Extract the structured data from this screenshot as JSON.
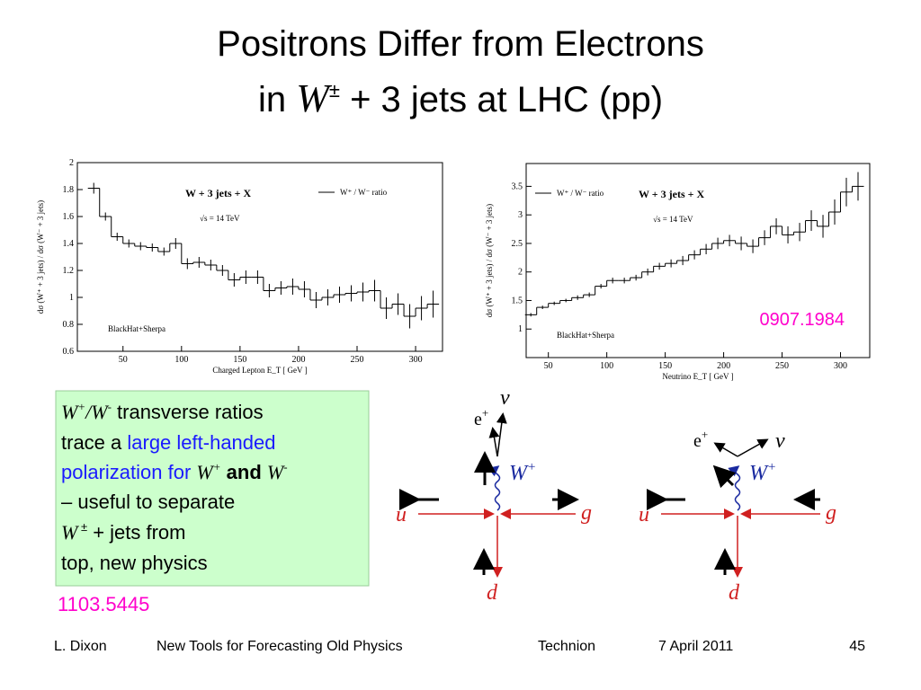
{
  "title": {
    "line1": "Positrons Differ from Electrons",
    "line2": [
      "in ",
      "W",
      "±",
      " + 3 jets at LHC (pp)"
    ]
  },
  "chart_data": [
    {
      "type": "histogram",
      "title": "W + 3 jets + X",
      "legend": "W⁺ / W⁻  ratio",
      "energy": "√s  = 14 TeV",
      "source": "BlackHat+Sherpa",
      "x_label": "Charged  Lepton  E_T  [ GeV ]",
      "y_label": "dσ (W⁺ + 3 jets)  /  dσ (W⁻ + 3 jets)",
      "color": "#000000",
      "bins": [
        20,
        30,
        40,
        50,
        60,
        70,
        80,
        90,
        100,
        110,
        120,
        130,
        140,
        150,
        160,
        170,
        180,
        190,
        200,
        210,
        220,
        230,
        240,
        250,
        260,
        270,
        280,
        290,
        300,
        310,
        320
      ],
      "values": [
        1.81,
        1.6,
        1.45,
        1.4,
        1.38,
        1.37,
        1.34,
        1.4,
        1.25,
        1.26,
        1.24,
        1.2,
        1.13,
        1.15,
        1.15,
        1.05,
        1.07,
        1.08,
        1.06,
        0.98,
        1.0,
        1.02,
        1.03,
        1.04,
        1.05,
        0.92,
        0.95,
        0.86,
        0.92,
        0.95
      ],
      "errors": [
        0.04,
        0.03,
        0.03,
        0.03,
        0.03,
        0.03,
        0.03,
        0.04,
        0.04,
        0.04,
        0.04,
        0.04,
        0.05,
        0.05,
        0.05,
        0.05,
        0.05,
        0.06,
        0.06,
        0.06,
        0.06,
        0.06,
        0.06,
        0.07,
        0.08,
        0.08,
        0.08,
        0.09,
        0.09,
        0.1
      ],
      "xlim": [
        11,
        323
      ],
      "ylim": [
        0.6,
        2
      ],
      "xticks": [
        50,
        100,
        150,
        200,
        250,
        300
      ],
      "yticks": [
        0.6,
        0.8,
        1,
        1.2,
        1.4,
        1.6,
        1.8,
        2
      ]
    },
    {
      "type": "histogram",
      "title": "W + 3 jets + X",
      "legend": "W⁺ / W⁻  ratio",
      "energy": "√s  = 14 TeV",
      "source": "BlackHat+Sherpa",
      "x_label": "Neutrino  E_T  [ GeV ]",
      "y_label": "dσ (W⁺ + 3 jets)  /  dσ (W⁻ + 3 jets)",
      "color": "#000000",
      "annotation": "0907.1984",
      "bins": [
        30,
        40,
        50,
        60,
        70,
        80,
        90,
        100,
        110,
        120,
        130,
        140,
        150,
        160,
        170,
        180,
        190,
        200,
        210,
        220,
        230,
        240,
        250,
        260,
        270,
        280,
        290,
        300,
        310,
        320
      ],
      "values": [
        1.25,
        1.38,
        1.45,
        1.5,
        1.55,
        1.6,
        1.75,
        1.85,
        1.85,
        1.9,
        2.0,
        2.1,
        2.15,
        2.2,
        2.3,
        2.4,
        2.5,
        2.55,
        2.5,
        2.45,
        2.6,
        2.8,
        2.65,
        2.7,
        2.9,
        2.8,
        3.05,
        3.4,
        3.5
      ],
      "errors": [
        0.03,
        0.03,
        0.03,
        0.03,
        0.04,
        0.04,
        0.04,
        0.05,
        0.05,
        0.05,
        0.06,
        0.06,
        0.07,
        0.08,
        0.08,
        0.09,
        0.1,
        0.1,
        0.12,
        0.12,
        0.13,
        0.14,
        0.15,
        0.16,
        0.18,
        0.2,
        0.22,
        0.25,
        0.25
      ],
      "xlim": [
        31,
        325
      ],
      "ylim": [
        0.5,
        3.9
      ],
      "xticks": [
        50,
        100,
        150,
        200,
        250,
        300
      ],
      "yticks": [
        1,
        1.5,
        2,
        2.5,
        3,
        3.5
      ]
    }
  ],
  "note": [
    [
      "W",
      "+",
      "/W",
      "-",
      " transverse ratios"
    ],
    [
      "trace a ",
      "large left-handed"
    ],
    [
      "polarization for ",
      "W",
      "+",
      " and ",
      "W",
      "-"
    ],
    [
      "– useful to separate"
    ],
    [
      "W",
      " ±",
      " + jets from"
    ],
    [
      "top, new physics"
    ]
  ],
  "reference": "1103.5445",
  "diagrams": [
    {
      "u": "u",
      "g": "g",
      "d": "d",
      "nu": "ν",
      "e": "e",
      "e_sup": "+",
      "w": "W",
      "w_sup": "+"
    },
    {
      "u": "u",
      "g": "g",
      "d": "d",
      "nu": "ν",
      "e": "e",
      "e_sup": "+",
      "w": "W",
      "w_sup": "+"
    }
  ],
  "footer": {
    "author": "L. Dixon",
    "talk": "New Tools for Forecasting Old Physics",
    "venue": "Technion",
    "date": "7 April 2011",
    "page": "45"
  }
}
